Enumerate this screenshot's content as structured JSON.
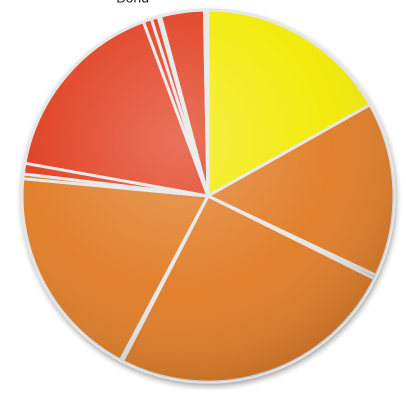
{
  "chart_data": {
    "type": "pie",
    "title": "",
    "labels": [
      "",
      "",
      "",
      "",
      "",
      "",
      "",
      "",
      "",
      "",
      "Bond",
      "",
      "",
      "",
      ""
    ],
    "values": [
      16.4,
      14.8,
      0.3,
      24.6,
      0.2,
      18.2,
      0.4,
      0.9,
      16.1,
      0.7,
      0.6,
      0.2,
      3.7,
      0.2,
      0.1
    ],
    "colors": [
      "#f2ea00",
      "#e07a22",
      "#e07a22",
      "#e07a22",
      "#e07a22",
      "#e07a22",
      "#e07a22",
      "#e03a1a",
      "#e03a1a",
      "#e03a1a",
      "#e03a1a",
      "#e03a1a",
      "#e03a1a",
      "#e03a1a",
      "#e03a1a"
    ],
    "legend": "none"
  }
}
